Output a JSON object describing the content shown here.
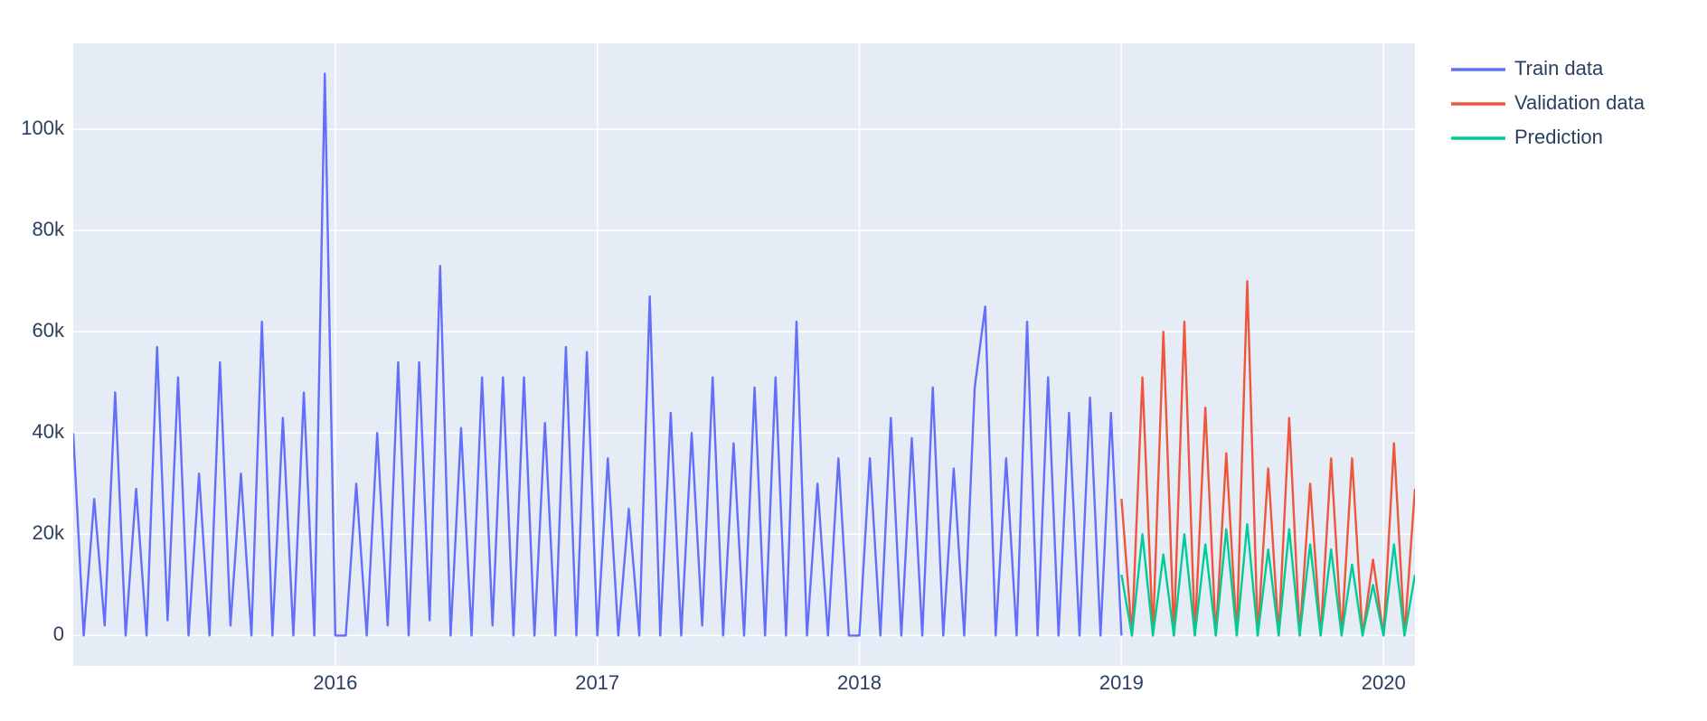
{
  "chart_data": {
    "type": "line",
    "xlim": [
      2015.0,
      2020.12
    ],
    "xticks": [
      2016,
      2017,
      2018,
      2019,
      2020
    ],
    "ylim": [
      -6000,
      117000
    ],
    "yticks": [
      0,
      {
        "value": 20000,
        "label": "20k"
      },
      {
        "value": 40000,
        "label": "40k"
      },
      {
        "value": 60000,
        "label": "60k"
      },
      {
        "value": 80000,
        "label": "80k"
      },
      {
        "value": 100000,
        "label": "100k"
      }
    ],
    "grid": true,
    "legend": "right",
    "series": [
      {
        "name": "Train data",
        "color": "#636efa",
        "x": [
          2015.0,
          2015.04,
          2015.08,
          2015.12,
          2015.16,
          2015.2,
          2015.24,
          2015.28,
          2015.32,
          2015.36,
          2015.4,
          2015.44,
          2015.48,
          2015.52,
          2015.56,
          2015.6,
          2015.64,
          2015.68,
          2015.72,
          2015.76,
          2015.8,
          2015.84,
          2015.88,
          2015.92,
          2015.96,
          2016.0,
          2016.04,
          2016.08,
          2016.12,
          2016.16,
          2016.2,
          2016.24,
          2016.28,
          2016.32,
          2016.36,
          2016.4,
          2016.44,
          2016.48,
          2016.52,
          2016.56,
          2016.6,
          2016.64,
          2016.68,
          2016.72,
          2016.76,
          2016.8,
          2016.84,
          2016.88,
          2016.92,
          2016.96,
          2017.0,
          2017.04,
          2017.08,
          2017.12,
          2017.16,
          2017.2,
          2017.24,
          2017.28,
          2017.32,
          2017.36,
          2017.4,
          2017.44,
          2017.48,
          2017.52,
          2017.56,
          2017.6,
          2017.64,
          2017.68,
          2017.72,
          2017.76,
          2017.8,
          2017.84,
          2017.88,
          2017.92,
          2017.96,
          2018.0,
          2018.04,
          2018.08,
          2018.12,
          2018.16,
          2018.2,
          2018.24,
          2018.28,
          2018.32,
          2018.36,
          2018.4,
          2018.44,
          2018.48,
          2018.52,
          2018.56,
          2018.6,
          2018.64,
          2018.68,
          2018.72,
          2018.76,
          2018.8,
          2018.84,
          2018.88,
          2018.92,
          2018.96,
          2019.0
        ],
        "values": [
          40000,
          0,
          27000,
          2000,
          48000,
          0,
          29000,
          0,
          57000,
          3000,
          51000,
          0,
          32000,
          0,
          54000,
          2000,
          32000,
          0,
          62000,
          0,
          43000,
          0,
          48000,
          0,
          111000,
          0,
          0,
          30000,
          0,
          40000,
          2000,
          54000,
          0,
          54000,
          3000,
          73000,
          0,
          41000,
          0,
          51000,
          2000,
          51000,
          0,
          51000,
          0,
          42000,
          0,
          57000,
          0,
          56000,
          0,
          35000,
          0,
          25000,
          0,
          67000,
          0,
          44000,
          0,
          40000,
          2000,
          51000,
          0,
          38000,
          0,
          49000,
          0,
          51000,
          0,
          62000,
          0,
          30000,
          0,
          35000,
          0,
          0,
          35000,
          0,
          43000,
          0,
          39000,
          0,
          49000,
          0,
          33000,
          0,
          49000,
          65000,
          0,
          35000,
          0,
          62000,
          0,
          51000,
          0,
          44000,
          0,
          47000,
          0,
          44000,
          0
        ]
      },
      {
        "name": "Validation data",
        "color": "#ef553b",
        "x": [
          2019.0,
          2019.04,
          2019.08,
          2019.12,
          2019.16,
          2019.2,
          2019.24,
          2019.28,
          2019.32,
          2019.36,
          2019.4,
          2019.44,
          2019.48,
          2019.52,
          2019.56,
          2019.6,
          2019.64,
          2019.68,
          2019.72,
          2019.76,
          2019.8,
          2019.84,
          2019.88,
          2019.92,
          2019.96,
          2020.0,
          2020.04,
          2020.08,
          2020.12
        ],
        "values": [
          27000,
          0,
          51000,
          0,
          60000,
          0,
          62000,
          0,
          45000,
          0,
          36000,
          0,
          70000,
          0,
          33000,
          0,
          43000,
          0,
          30000,
          0,
          35000,
          0,
          35000,
          0,
          15000,
          0,
          38000,
          0,
          29000
        ]
      },
      {
        "name": "Prediction",
        "color": "#00cc96",
        "x": [
          2019.0,
          2019.04,
          2019.08,
          2019.12,
          2019.16,
          2019.2,
          2019.24,
          2019.28,
          2019.32,
          2019.36,
          2019.4,
          2019.44,
          2019.48,
          2019.52,
          2019.56,
          2019.6,
          2019.64,
          2019.68,
          2019.72,
          2019.76,
          2019.8,
          2019.84,
          2019.88,
          2019.92,
          2019.96,
          2020.0,
          2020.04,
          2020.08,
          2020.12
        ],
        "values": [
          12000,
          0,
          20000,
          0,
          16000,
          0,
          20000,
          0,
          18000,
          0,
          21000,
          0,
          22000,
          0,
          17000,
          0,
          21000,
          0,
          18000,
          0,
          17000,
          0,
          14000,
          0,
          10000,
          0,
          18000,
          0,
          12000
        ]
      }
    ]
  }
}
